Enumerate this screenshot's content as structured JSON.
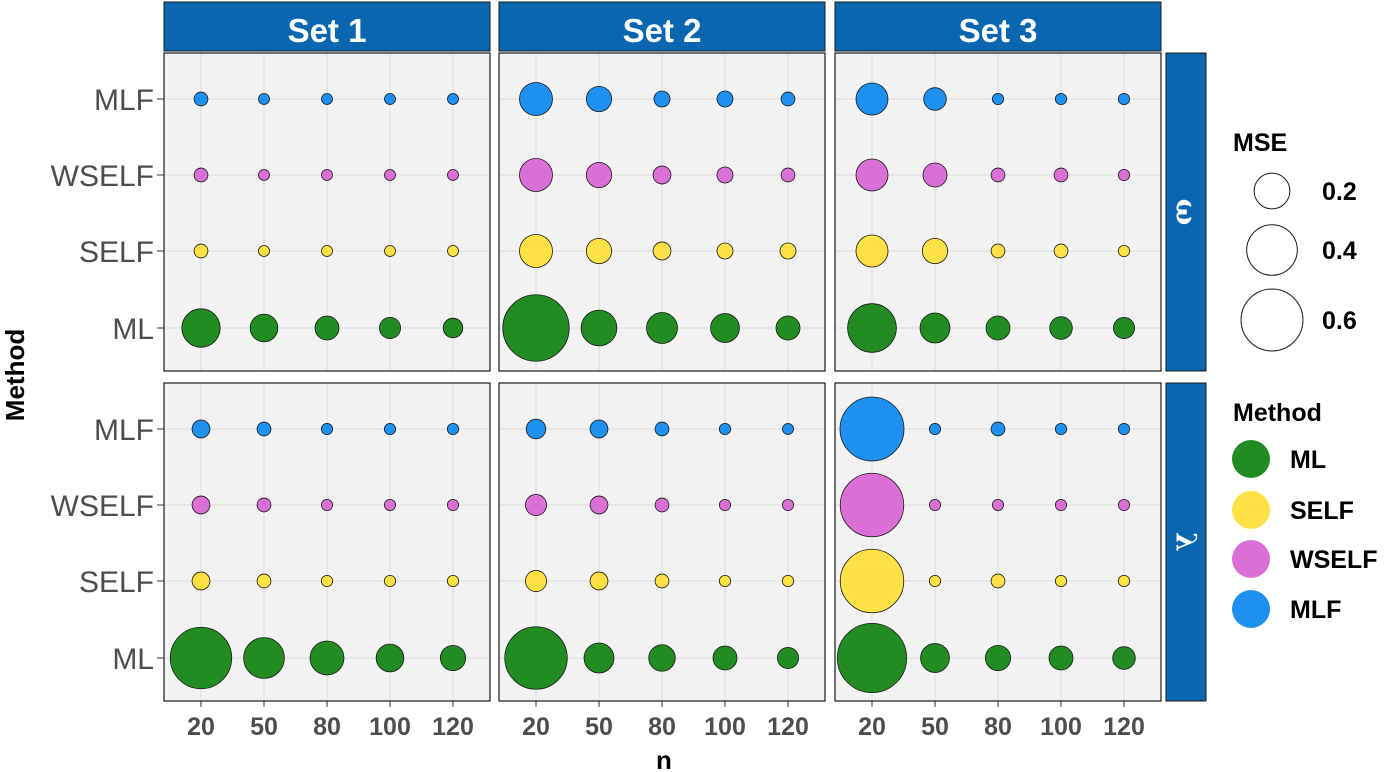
{
  "chart_data": {
    "type": "scatter",
    "subtype": "bubble-facet-grid",
    "xlabel": "n",
    "ylabel": "Method",
    "x_categories": [
      "20",
      "50",
      "80",
      "100",
      "120"
    ],
    "y_categories": [
      "ML",
      "SELF",
      "WSELF",
      "MLF"
    ],
    "column_facets": [
      "Set 1",
      "Set 2",
      "Set 3"
    ],
    "row_facets": [
      "ω",
      "λ"
    ],
    "size_variable": "MSE",
    "size_legend": {
      "title": "MSE",
      "breaks": [
        0.2,
        0.4,
        0.6
      ],
      "labels": [
        "0.2",
        "0.4",
        "0.6"
      ]
    },
    "color_legend": {
      "title": "Method",
      "entries": [
        {
          "name": "ML",
          "color": "#228B22"
        },
        {
          "name": "SELF",
          "color": "#FFE045"
        },
        {
          "name": "WSELF",
          "color": "#DA70D6"
        },
        {
          "name": "MLF",
          "color": "#1E90F0"
        }
      ]
    },
    "panels": [
      {
        "row": "ω",
        "col": "Set 1",
        "values": {
          "MLF": [
            0.03,
            0.01,
            0.01,
            0.01,
            0.01
          ],
          "WSELF": [
            0.03,
            0.01,
            0.01,
            0.01,
            0.01
          ],
          "SELF": [
            0.03,
            0.01,
            0.01,
            0.01,
            0.01
          ],
          "ML": [
            0.23,
            0.12,
            0.09,
            0.07,
            0.06
          ]
        }
      },
      {
        "row": "ω",
        "col": "Set 2",
        "values": {
          "MLF": [
            0.17,
            0.1,
            0.04,
            0.04,
            0.03
          ],
          "WSELF": [
            0.17,
            0.1,
            0.05,
            0.04,
            0.03
          ],
          "SELF": [
            0.17,
            0.1,
            0.05,
            0.04,
            0.04
          ],
          "ML": [
            0.69,
            0.2,
            0.15,
            0.13,
            0.09
          ]
        }
      },
      {
        "row": "ω",
        "col": "Set 3",
        "values": {
          "MLF": [
            0.16,
            0.08,
            0.02,
            0.02,
            0.02
          ],
          "WSELF": [
            0.16,
            0.09,
            0.03,
            0.03,
            0.02
          ],
          "SELF": [
            0.16,
            0.1,
            0.03,
            0.03,
            0.02
          ],
          "ML": [
            0.37,
            0.14,
            0.09,
            0.08,
            0.07
          ]
        }
      },
      {
        "row": "λ",
        "col": "Set 1",
        "values": {
          "MLF": [
            0.05,
            0.03,
            0.02,
            0.02,
            0.02
          ],
          "WSELF": [
            0.05,
            0.03,
            0.02,
            0.02,
            0.02
          ],
          "SELF": [
            0.05,
            0.03,
            0.02,
            0.02,
            0.02
          ],
          "ML": [
            0.59,
            0.26,
            0.18,
            0.12,
            0.1
          ]
        }
      },
      {
        "row": "λ",
        "col": "Set 2",
        "values": {
          "MLF": [
            0.06,
            0.05,
            0.03,
            0.02,
            0.01
          ],
          "WSELF": [
            0.07,
            0.05,
            0.03,
            0.02,
            0.02
          ],
          "SELF": [
            0.07,
            0.05,
            0.03,
            0.02,
            0.02
          ],
          "ML": [
            0.61,
            0.14,
            0.11,
            0.09,
            0.07
          ]
        }
      },
      {
        "row": "λ",
        "col": "Set 3",
        "values": {
          "MLF": [
            0.64,
            0.02,
            0.03,
            0.02,
            0.02
          ],
          "WSELF": [
            0.63,
            0.02,
            0.02,
            0.02,
            0.02
          ],
          "SELF": [
            0.63,
            0.02,
            0.03,
            0.02,
            0.02
          ],
          "ML": [
            0.75,
            0.13,
            0.1,
            0.09,
            0.08
          ]
        }
      }
    ],
    "grid": true,
    "legend_position": "right",
    "panel_background": "#F2F2F2",
    "strip_color": "#0A66AE"
  }
}
